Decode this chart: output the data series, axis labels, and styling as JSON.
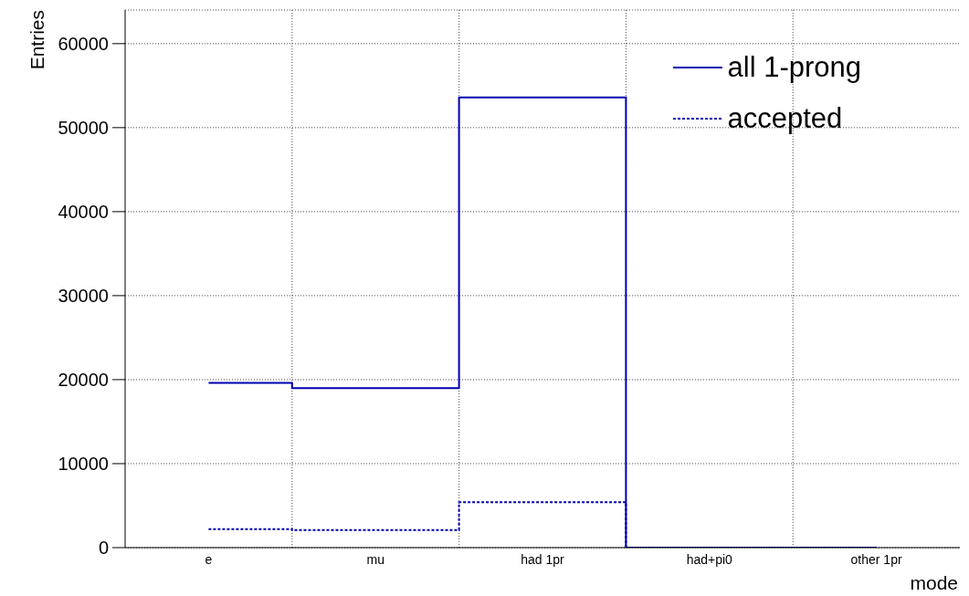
{
  "chart_data": {
    "type": "step",
    "xlabel": "mode",
    "ylabel": "Entries",
    "categories": [
      "e",
      "mu",
      "had 1pr",
      "had+pi0",
      "other 1pr"
    ],
    "series": [
      {
        "name": "all 1-prong",
        "color": "#0000b0",
        "values": [
          19600,
          19000,
          53600,
          0,
          0
        ],
        "line_style": "solid"
      },
      {
        "name": "accepted",
        "color": "#0000b0",
        "values": [
          2200,
          2100,
          5400,
          0,
          0
        ],
        "line_style": "dotted"
      }
    ],
    "ylim": [
      0,
      64000
    ],
    "yticks": [
      0,
      10000,
      20000,
      30000,
      40000,
      50000,
      60000
    ],
    "grid": true,
    "legend": "top right",
    "marker": "none"
  }
}
